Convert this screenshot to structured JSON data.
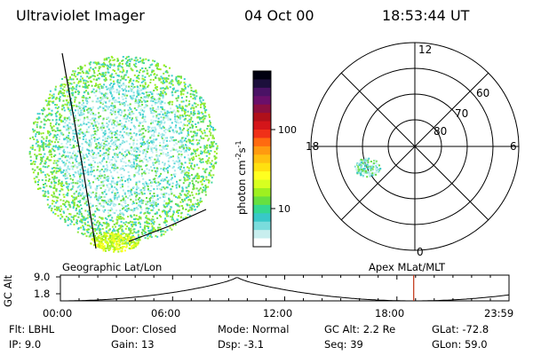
{
  "header": {
    "title": "Ultraviolet Imager",
    "date": "04 Oct 00",
    "time": "18:53:44 UT"
  },
  "colorbar": {
    "title": "photon cm^-2 s^-1",
    "title_main": "photon cm",
    "title_sup1": "-2",
    "title_mid": "s",
    "title_sup2": "-1",
    "ticks": [
      "100",
      "10"
    ],
    "colors": [
      "#000010",
      "#1c0f3c",
      "#4a1265",
      "#6a0f6a",
      "#8b0f40",
      "#b0101a",
      "#d4151a",
      "#f03018",
      "#ff6a10",
      "#ff9a10",
      "#ffc010",
      "#ffe010",
      "#ffff20",
      "#d8ff20",
      "#9ef020",
      "#66e040",
      "#34d890",
      "#38c8c8",
      "#7adcdc",
      "#c8eeee",
      "#ffffff"
    ]
  },
  "left_panel": {
    "caption": "Geographic Lat/Lon"
  },
  "right_panel": {
    "caption": "Apex MLat/MLT",
    "mlt_labels": {
      "top": "12",
      "bottom": "0",
      "left": "18",
      "right": "6"
    },
    "lat_labels": [
      "60",
      "70",
      "80"
    ]
  },
  "orbit_plot": {
    "ylabel": "GC Alt",
    "yticks": [
      "9.0",
      "1.8"
    ],
    "xticks": [
      "00:00",
      "06:00",
      "12:00",
      "18:00",
      "23:59"
    ],
    "current_marker_hours": 18.9
  },
  "info": {
    "flt": "Flt: LBHL",
    "ip": "IP:  9.0",
    "door": "Door: Closed",
    "gain": "Gain: 13",
    "mode": "Mode: Normal",
    "dsp": "Dsp:   -3.1",
    "gcalt": "GC Alt: 2.2 Re",
    "seq": "Seq: 39",
    "glat": "GLat:  -72.8",
    "glon": "GLon:  59.0"
  }
}
